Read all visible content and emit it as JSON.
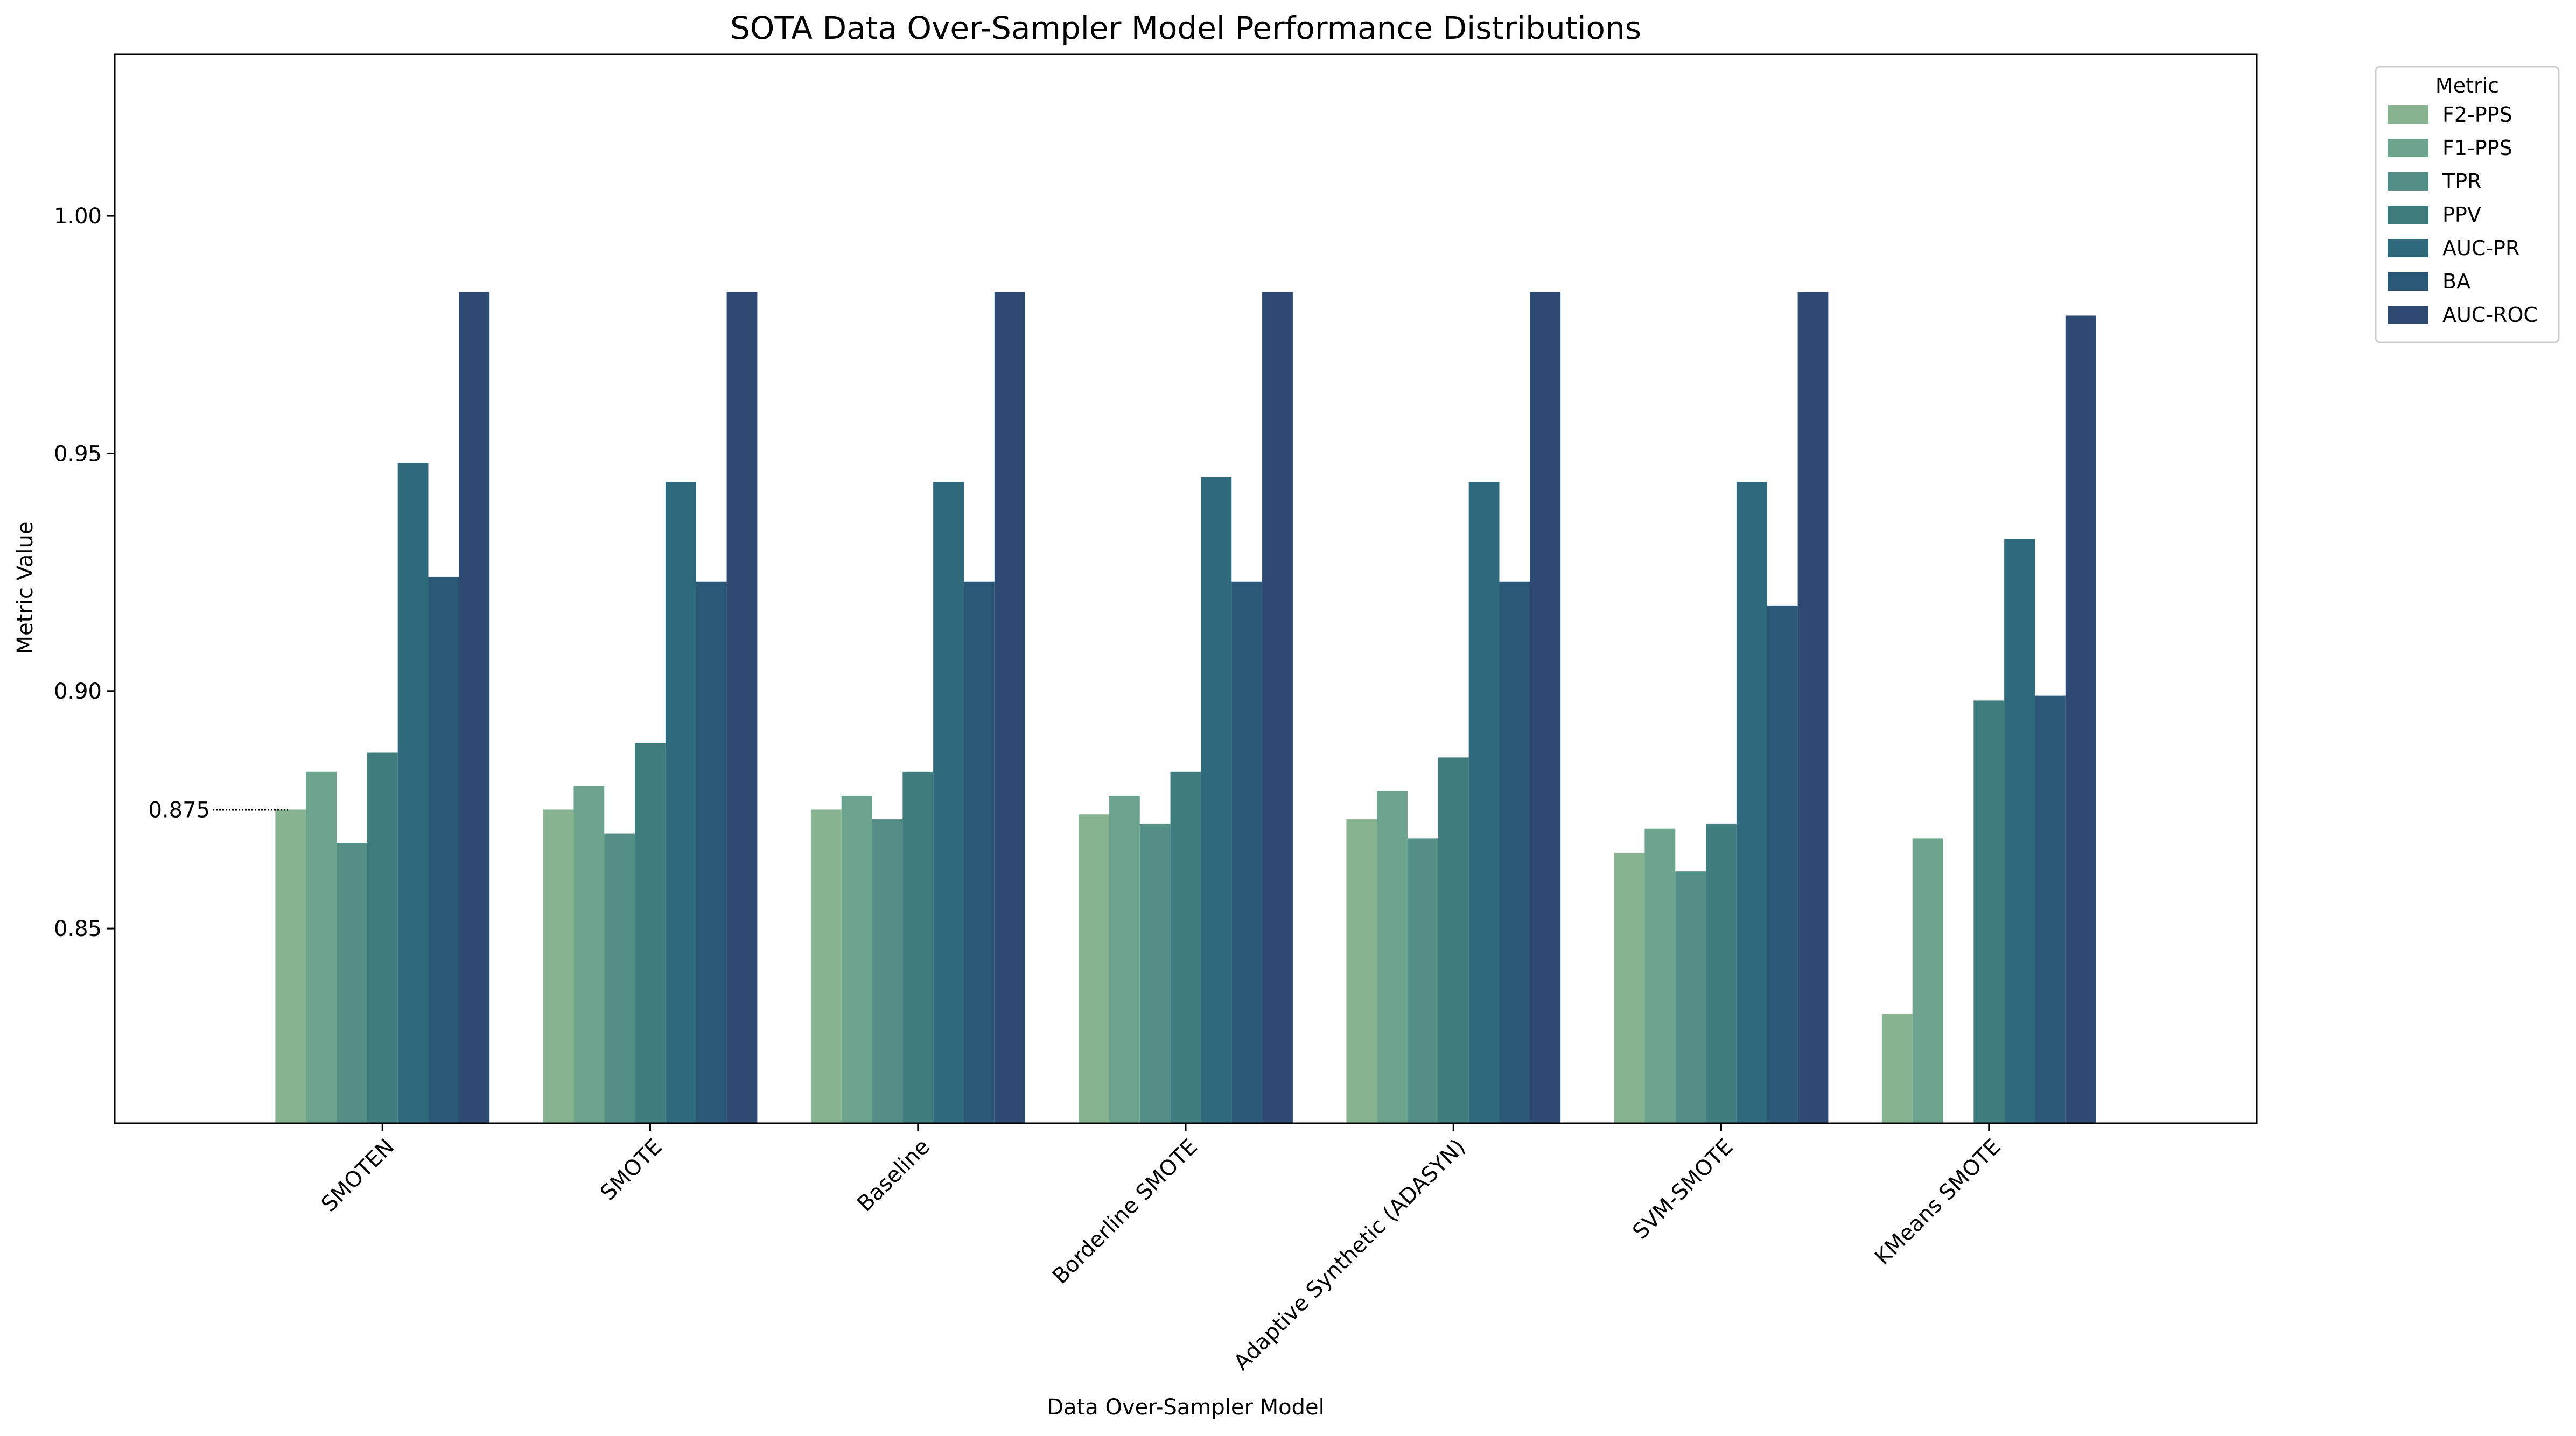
{
  "chart_data": {
    "type": "bar",
    "title": "SOTA Data Over-Sampler Model Performance Distributions",
    "xlabel": "Data Over-Sampler Model",
    "ylabel": "Metric Value",
    "ylim": [
      0.809,
      1.034
    ],
    "yticks": [
      0.85,
      0.9,
      0.95,
      1.0
    ],
    "ytick_labels": [
      "0.85",
      "0.90",
      "0.95",
      "1.00"
    ],
    "grid": false,
    "categories": [
      "SMOTEN",
      "SMOTE",
      "Baseline",
      "Borderline SMOTE",
      "Adaptive Synthetic (ADASYN)",
      "SVM-SMOTE",
      "KMeans SMOTE"
    ],
    "legend": {
      "title": "Metric",
      "placement": "outside-top-right"
    },
    "series": [
      {
        "name": "F2-PPS",
        "color": "#88b391",
        "values": [
          0.875,
          0.875,
          0.875,
          0.874,
          0.873,
          0.866,
          0.832
        ]
      },
      {
        "name": "F1-PPS",
        "color": "#6ba38c",
        "values": [
          0.883,
          0.88,
          0.878,
          0.878,
          0.879,
          0.871,
          0.869
        ]
      },
      {
        "name": "TPR",
        "color": "#538f87",
        "values": [
          0.868,
          0.87,
          0.873,
          0.872,
          0.869,
          0.862,
          0.8
        ]
      },
      {
        "name": "PPV",
        "color": "#3f7c7e",
        "values": [
          0.887,
          0.889,
          0.883,
          0.883,
          0.886,
          0.872,
          0.898
        ]
      },
      {
        "name": "AUC-PR",
        "color": "#2f6a7c",
        "values": [
          0.948,
          0.944,
          0.944,
          0.945,
          0.944,
          0.944,
          0.932
        ]
      },
      {
        "name": "BA",
        "color": "#2b5876",
        "values": [
          0.924,
          0.923,
          0.923,
          0.923,
          0.923,
          0.918,
          0.899
        ]
      },
      {
        "name": "AUC-ROC",
        "color": "#2f4a72",
        "values": [
          0.984,
          0.984,
          0.984,
          0.984,
          0.984,
          0.984,
          0.979
        ]
      }
    ],
    "annotation": {
      "text": "0.875",
      "value": 0.875
    }
  }
}
